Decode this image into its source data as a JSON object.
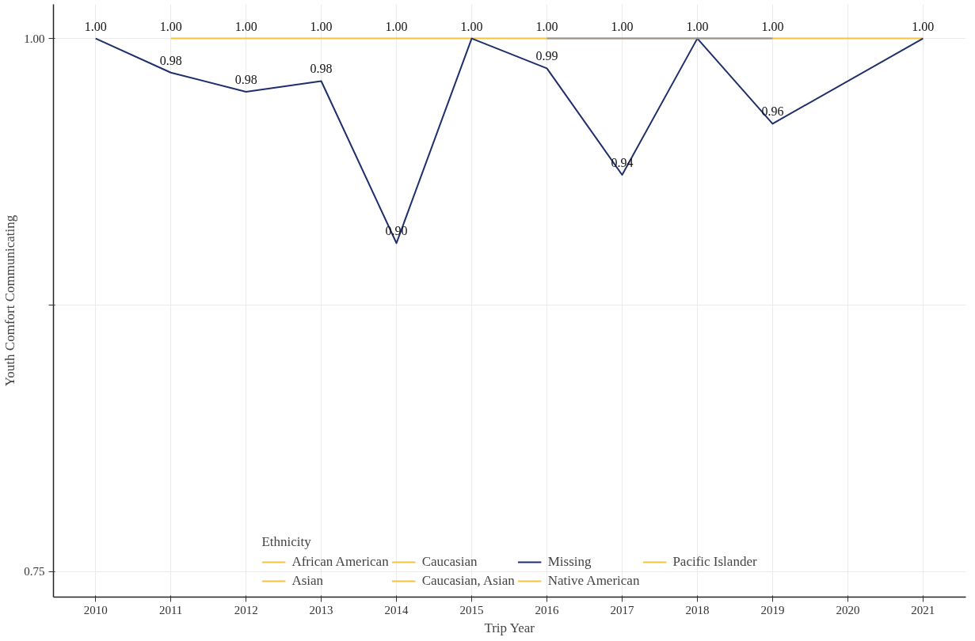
{
  "chart_data": {
    "type": "line",
    "xlabel": "Trip Year",
    "ylabel": "Youth Comfort Communicating",
    "legend_title": "Ethnicity",
    "xlim": [
      2009.44,
      2021.57
    ],
    "xticks": [
      2010,
      2011,
      2012,
      2013,
      2014,
      2015,
      2016,
      2017,
      2018,
      2019,
      2020,
      2021
    ],
    "ylim": [
      0.738,
      1.016
    ],
    "yticks": [
      {
        "value": 0.75,
        "label": "0.75"
      },
      {
        "value": 0.875,
        "label": null
      },
      {
        "value": 1.0,
        "label": "1.00"
      }
    ],
    "grid": true,
    "legend": "bottom",
    "series": [
      {
        "name": "African American",
        "color": "#f5c342"
      },
      {
        "name": "Asian",
        "color": "#f5c342"
      },
      {
        "name": "Caucasian",
        "color": "#f5c342",
        "x": [
          2011,
          2012,
          2013,
          2014,
          2015,
          2016,
          2017,
          2018,
          2019,
          2021
        ],
        "values": [
          1.0,
          1.0,
          1.0,
          1.0,
          1.0,
          1.0,
          1.0,
          1.0,
          1.0,
          1.0
        ],
        "value_labels": [
          "1.00",
          "1.00",
          "1.00",
          "1.00",
          "1.00",
          "1.00",
          "1.00",
          "1.00",
          "1.00",
          "1.00"
        ]
      },
      {
        "name": "Caucasian, Asian",
        "color": "#f5c342"
      },
      {
        "name": "Missing",
        "color": "#1f2f6b",
        "x": [
          2010,
          2011,
          2012,
          2013,
          2014,
          2015,
          2016,
          2017,
          2018,
          2019,
          2021
        ],
        "values": [
          1.0,
          0.984,
          0.975,
          0.98,
          0.904,
          1.0,
          0.986,
          0.936,
          1.0,
          0.96,
          1.0
        ],
        "value_labels": [
          "1.00",
          "0.98",
          "0.98",
          "0.98",
          "0.90",
          null,
          "0.99",
          "0.94",
          null,
          "0.96",
          null
        ]
      },
      {
        "name": "Native American",
        "color": "#f5c342"
      },
      {
        "name": "Pacific Islander",
        "color": "#f5c342"
      },
      {
        "color": "#9a9386",
        "x": [
          2016,
          2017,
          2018,
          2019
        ],
        "values": [
          1.0,
          1.0,
          1.0,
          1.0
        ]
      }
    ]
  }
}
